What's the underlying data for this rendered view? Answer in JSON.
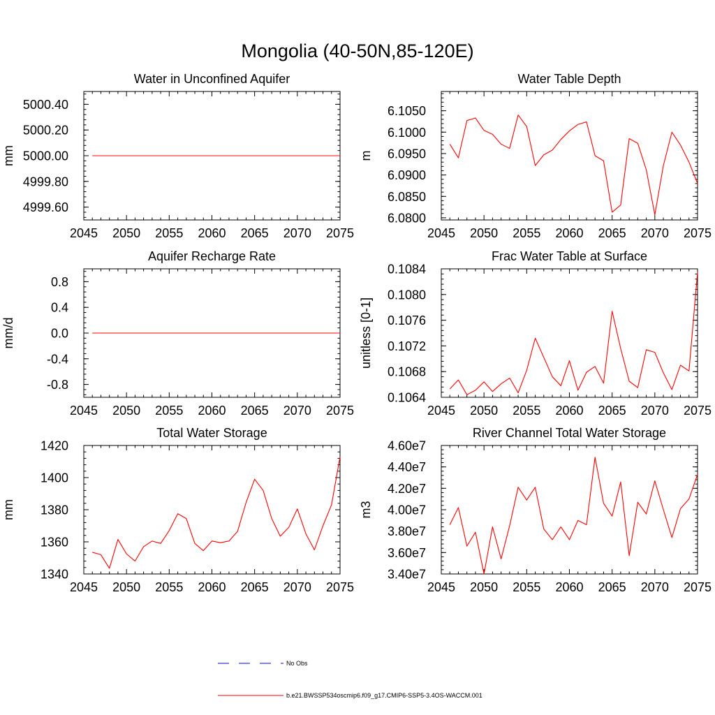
{
  "figure": {
    "title": "Mongolia (40-50N,85-120E)"
  },
  "legend": {
    "entries": [
      {
        "label": "No Obs",
        "color": "#0000ff",
        "style": "dashed"
      },
      {
        "label": "b.e21.BWSSP534oscmip6.f09_g17.CMIP6-SSP5-3.4OS-WACCM.001",
        "color": "#ff0000",
        "style": "solid"
      }
    ]
  },
  "chart_data": [
    {
      "type": "line",
      "title": "Water in Unconfined Aquifer",
      "ylabel": "mm",
      "xlim": [
        2045,
        2075
      ],
      "ylim": [
        4999.5,
        5000.5
      ],
      "xticks": [
        2045,
        2050,
        2055,
        2060,
        2065,
        2070,
        2075
      ],
      "yticks": [
        4999.6,
        4999.8,
        5000.0,
        5000.2,
        5000.4
      ],
      "ytick_labels": [
        "4999.60",
        "4999.80",
        "5000.00",
        "5000.20",
        "5000.40"
      ],
      "x": [
        2046,
        2047,
        2048,
        2049,
        2050,
        2051,
        2052,
        2053,
        2054,
        2055,
        2056,
        2057,
        2058,
        2059,
        2060,
        2061,
        2062,
        2063,
        2064,
        2065,
        2066,
        2067,
        2068,
        2069,
        2070,
        2071,
        2072,
        2073,
        2074,
        2075
      ],
      "series": [
        {
          "color": "#ff0000",
          "values": [
            5000,
            5000,
            5000,
            5000,
            5000,
            5000,
            5000,
            5000,
            5000,
            5000,
            5000,
            5000,
            5000,
            5000,
            5000,
            5000,
            5000,
            5000,
            5000,
            5000,
            5000,
            5000,
            5000,
            5000,
            5000,
            5000,
            5000,
            5000,
            5000,
            5000
          ]
        }
      ]
    },
    {
      "type": "line",
      "title": "Water Table Depth",
      "ylabel": "m",
      "xlim": [
        2045,
        2075
      ],
      "ylim": [
        6.0795,
        6.1095
      ],
      "xticks": [
        2045,
        2050,
        2055,
        2060,
        2065,
        2070,
        2075
      ],
      "yticks": [
        6.08,
        6.085,
        6.09,
        6.095,
        6.1,
        6.105
      ],
      "ytick_labels": [
        "6.0800",
        "6.0850",
        "6.0900",
        "6.0950",
        "6.1000",
        "6.1050"
      ],
      "x": [
        2046,
        2047,
        2048,
        2049,
        2050,
        2051,
        2052,
        2053,
        2054,
        2055,
        2056,
        2057,
        2058,
        2059,
        2060,
        2061,
        2062,
        2063,
        2064,
        2065,
        2066,
        2067,
        2068,
        2069,
        2070,
        2071,
        2072,
        2073,
        2074,
        2075
      ],
      "series": [
        {
          "color": "#ff0000",
          "values": [
            6.0972,
            6.094,
            6.1027,
            6.1033,
            6.1004,
            6.0995,
            6.0972,
            6.0962,
            6.104,
            6.1013,
            6.0922,
            6.0947,
            6.0958,
            6.0983,
            6.1003,
            6.1018,
            6.1024,
            6.0945,
            6.0933,
            6.0813,
            6.083,
            6.0985,
            6.0974,
            6.0912,
            6.0807,
            6.0922,
            6.1,
            6.097,
            6.093,
            6.088
          ]
        }
      ]
    },
    {
      "type": "line",
      "title": "Aquifer Recharge Rate",
      "ylabel": "mm/d",
      "xlim": [
        2045,
        2075
      ],
      "ylim": [
        -1.0,
        1.0
      ],
      "xticks": [
        2045,
        2050,
        2055,
        2060,
        2065,
        2070,
        2075
      ],
      "yticks": [
        -0.8,
        -0.4,
        0.0,
        0.4,
        0.8
      ],
      "ytick_labels": [
        "-0.8",
        "-0.4",
        "0.0",
        "0.4",
        "0.8"
      ],
      "x": [
        2046,
        2047,
        2048,
        2049,
        2050,
        2051,
        2052,
        2053,
        2054,
        2055,
        2056,
        2057,
        2058,
        2059,
        2060,
        2061,
        2062,
        2063,
        2064,
        2065,
        2066,
        2067,
        2068,
        2069,
        2070,
        2071,
        2072,
        2073,
        2074,
        2075
      ],
      "series": [
        {
          "color": "#ff0000",
          "values": [
            0,
            0,
            0,
            0,
            0,
            0,
            0,
            0,
            0,
            0,
            0,
            0,
            0,
            0,
            0,
            0,
            0,
            0,
            0,
            0,
            0,
            0,
            0,
            0,
            0,
            0,
            0,
            0,
            0,
            0
          ]
        }
      ]
    },
    {
      "type": "line",
      "title": "Frac Water Table at Surface",
      "ylabel": "unitless [0-1]",
      "xlim": [
        2045,
        2075
      ],
      "ylim": [
        0.1064,
        0.1084
      ],
      "xticks": [
        2045,
        2050,
        2055,
        2060,
        2065,
        2070,
        2075
      ],
      "yticks": [
        0.1064,
        0.1068,
        0.1072,
        0.1076,
        0.108,
        0.1084
      ],
      "ytick_labels": [
        "0.1064",
        "0.1068",
        "0.1072",
        "0.1076",
        "0.1080",
        "0.1084"
      ],
      "x": [
        2046,
        2047,
        2048,
        2049,
        2050,
        2051,
        2052,
        2053,
        2054,
        2055,
        2056,
        2057,
        2058,
        2059,
        2060,
        2061,
        2062,
        2063,
        2064,
        2065,
        2066,
        2067,
        2068,
        2069,
        2070,
        2071,
        2072,
        2073,
        2074,
        2075
      ],
      "series": [
        {
          "color": "#ff0000",
          "values": [
            0.10653,
            0.10667,
            0.10644,
            0.10651,
            0.10664,
            0.10649,
            0.10661,
            0.1067,
            0.10647,
            0.10682,
            0.10732,
            0.10702,
            0.10672,
            0.10658,
            0.10697,
            0.10651,
            0.10679,
            0.10688,
            0.10662,
            0.10774,
            0.10716,
            0.10665,
            0.10655,
            0.10714,
            0.1071,
            0.10678,
            0.10652,
            0.1069,
            0.10681,
            0.10835
          ]
        }
      ]
    },
    {
      "type": "line",
      "title": "Total Water Storage",
      "ylabel": "mm",
      "xlim": [
        2045,
        2075
      ],
      "ylim": [
        1340,
        1420
      ],
      "xticks": [
        2045,
        2050,
        2055,
        2060,
        2065,
        2070,
        2075
      ],
      "yticks": [
        1340,
        1360,
        1380,
        1400,
        1420
      ],
      "ytick_labels": [
        "1340",
        "1360",
        "1380",
        "1400",
        "1420"
      ],
      "x": [
        2046,
        2047,
        2048,
        2049,
        2050,
        2051,
        2052,
        2053,
        2054,
        2055,
        2056,
        2057,
        2058,
        2059,
        2060,
        2061,
        2062,
        2063,
        2064,
        2065,
        2066,
        2067,
        2068,
        2069,
        2070,
        2071,
        2072,
        2073,
        2074,
        2075
      ],
      "series": [
        {
          "color": "#ff0000",
          "values": [
            1353.5,
            1352.0,
            1343.5,
            1361.5,
            1352.5,
            1348.0,
            1357.0,
            1360.5,
            1359.0,
            1367.0,
            1377.5,
            1374.5,
            1359.0,
            1354.5,
            1360.5,
            1359.5,
            1360.5,
            1366.5,
            1384.5,
            1399.0,
            1392.0,
            1374.5,
            1363.5,
            1369.0,
            1380.5,
            1365.0,
            1355.0,
            1370.0,
            1383.0,
            1413.0
          ]
        }
      ]
    },
    {
      "type": "line",
      "title": "River Channel Total Water Storage",
      "ylabel": "m3",
      "xlim": [
        2045,
        2075
      ],
      "ylim": [
        34000000,
        46000000
      ],
      "xticks": [
        2045,
        2050,
        2055,
        2060,
        2065,
        2070,
        2075
      ],
      "yticks": [
        34000000,
        36000000,
        38000000,
        40000000,
        42000000,
        44000000,
        46000000
      ],
      "ytick_labels": [
        "3.40e7",
        "3.60e7",
        "3.80e7",
        "4.00e7",
        "4.20e7",
        "4.40e7",
        "4.60e7"
      ],
      "x": [
        2046,
        2047,
        2048,
        2049,
        2050,
        2051,
        2052,
        2053,
        2054,
        2055,
        2056,
        2057,
        2058,
        2059,
        2060,
        2061,
        2062,
        2063,
        2064,
        2065,
        2066,
        2067,
        2068,
        2069,
        2070,
        2071,
        2072,
        2073,
        2074,
        2075
      ],
      "series": [
        {
          "color": "#ff0000",
          "values": [
            38600000,
            40200000,
            36600000,
            37900000,
            34000000,
            38400000,
            35400000,
            38500000,
            42100000,
            40900000,
            42100000,
            38200000,
            37200000,
            38400000,
            37200000,
            39000000,
            38600000,
            44900000,
            40600000,
            39400000,
            42600000,
            35700000,
            40700000,
            39600000,
            42700000,
            40000000,
            37400000,
            40100000,
            41000000,
            43300000
          ]
        }
      ]
    }
  ]
}
